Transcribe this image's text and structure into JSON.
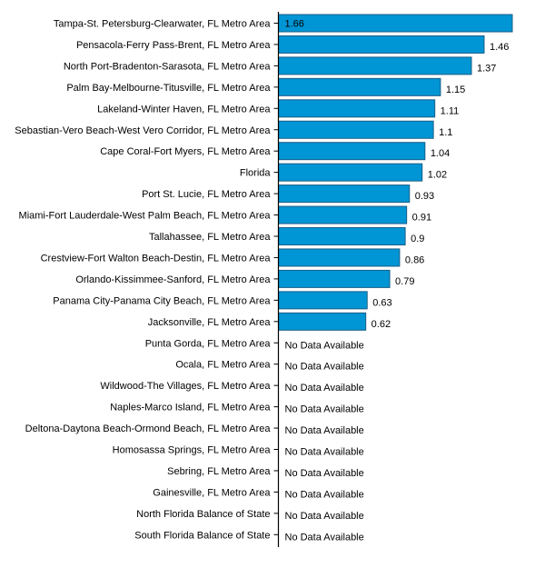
{
  "chart_data": {
    "type": "bar",
    "orientation": "horizontal",
    "title": "",
    "xlabel": "",
    "ylabel": "",
    "xlim": [
      0,
      1.66
    ],
    "grid": false,
    "legend": "none",
    "bar_color": "#0095D5",
    "bar_border_color": "#1B5E86",
    "no_data_label": "No Data Available",
    "categories": [
      "Tampa-St. Petersburg-Clearwater, FL Metro Area",
      "Pensacola-Ferry Pass-Brent, FL Metro Area",
      "North Port-Bradenton-Sarasota, FL Metro Area",
      "Palm Bay-Melbourne-Titusville, FL Metro Area",
      "Lakeland-Winter Haven, FL Metro Area",
      "Sebastian-Vero Beach-West Vero Corridor, FL Metro Area",
      "Cape Coral-Fort Myers, FL Metro Area",
      "Florida",
      "Port St. Lucie, FL Metro Area",
      "Miami-Fort Lauderdale-West Palm Beach, FL Metro Area",
      "Tallahassee, FL Metro Area",
      "Crestview-Fort Walton Beach-Destin, FL Metro Area",
      "Orlando-Kissimmee-Sanford, FL Metro Area",
      "Panama City-Panama City Beach, FL Metro Area",
      "Jacksonville, FL Metro Area",
      "Punta Gorda, FL Metro Area",
      "Ocala, FL Metro Area",
      "Wildwood-The Villages, FL Metro Area",
      "Naples-Marco Island, FL Metro Area",
      "Deltona-Daytona Beach-Ormond Beach, FL Metro Area",
      "Homosassa Springs, FL Metro Area",
      "Sebring, FL Metro Area",
      "Gainesville, FL Metro Area",
      "North Florida Balance of State",
      "South Florida Balance of State"
    ],
    "values": [
      1.66,
      1.46,
      1.37,
      1.15,
      1.11,
      1.1,
      1.04,
      1.02,
      0.93,
      0.91,
      0.9,
      0.86,
      0.79,
      0.63,
      0.62,
      null,
      null,
      null,
      null,
      null,
      null,
      null,
      null,
      null,
      null
    ],
    "value_labels": [
      "1.66",
      "1.46",
      "1.37",
      "1.15",
      "1.11",
      "1.1",
      "1.04",
      "1.02",
      "0.93",
      "0.91",
      "0.9",
      "0.86",
      "0.79",
      "0.63",
      "0.62",
      null,
      null,
      null,
      null,
      null,
      null,
      null,
      null,
      null,
      null
    ]
  }
}
